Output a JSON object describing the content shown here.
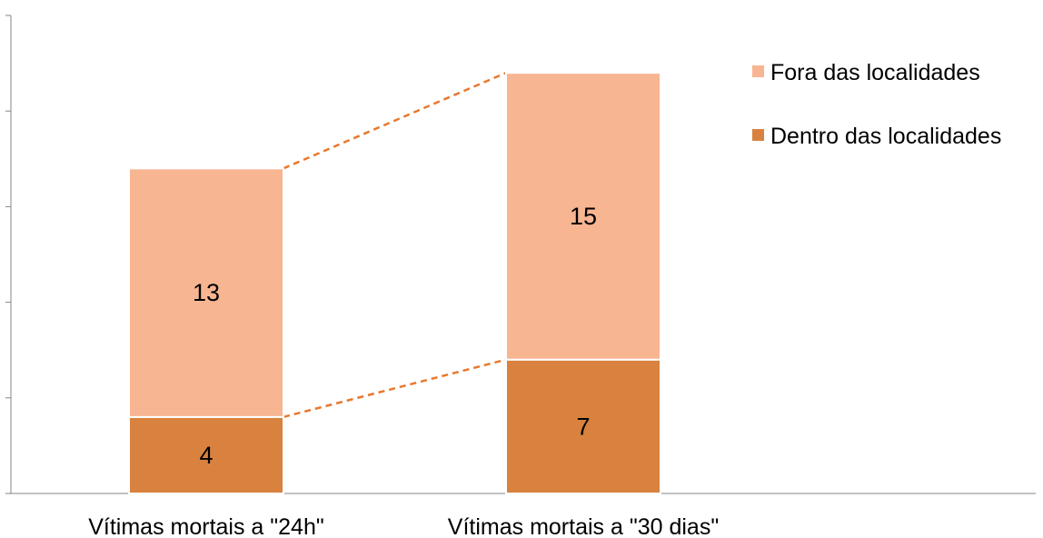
{
  "chart_data": {
    "type": "bar",
    "stacked": true,
    "categories": [
      "Vítimas mortais a \"24h\"",
      "Vítimas mortais a \"30 dias\""
    ],
    "series": [
      {
        "name": "Dentro das localidades",
        "values": [
          4,
          7
        ],
        "color": "#D9823F"
      },
      {
        "name": "Fora das localidades",
        "values": [
          13,
          15
        ],
        "color": "#F8B592"
      }
    ],
    "ylim": [
      0,
      25
    ],
    "y_ticks": [
      0,
      5,
      10,
      15,
      20,
      25
    ],
    "y_tick_labels_visible": false,
    "connector_lines": {
      "style": "dashed",
      "color": "#E8782E"
    },
    "legend_position": "right",
    "legend_order": [
      "Fora das localidades",
      "Dentro das localidades"
    ]
  }
}
